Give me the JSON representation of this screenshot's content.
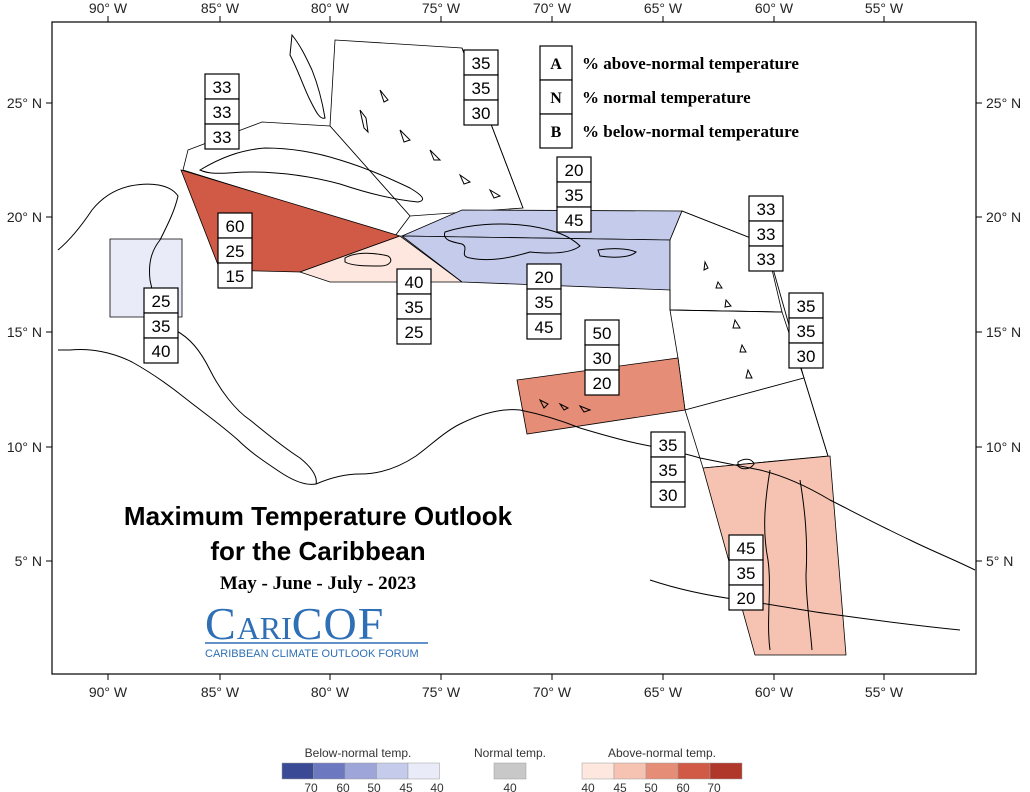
{
  "map": {
    "title": "Maximum Temperature Outlook",
    "title_line2": "for the Caribbean",
    "period": "May - June - July - 2023",
    "logo": {
      "brand_big1": "C",
      "brand_small": "ARI",
      "brand_big2": "COF",
      "subtitle": "CARIBBEAN CLIMATE OUTLOOK FORUM"
    },
    "axes": {
      "lon_labels": [
        "90° W",
        "85° W",
        "80° W",
        "75° W",
        "70° W",
        "65° W",
        "60° W",
        "55° W"
      ],
      "lat_labels": [
        "25° N",
        "20° N",
        "15° N",
        "10° N",
        "5° N"
      ]
    },
    "key": [
      {
        "letter": "A",
        "desc": "% above-normal temperature"
      },
      {
        "letter": "N",
        "desc": "% normal temperature"
      },
      {
        "letter": "B",
        "desc": "% below-normal temperature"
      }
    ],
    "colors": {
      "above_70": "#b0382a",
      "above_60": "#d05a45",
      "above_50": "#e58d76",
      "above_45": "#f6c3b2",
      "above_40": "#fde7df",
      "normal": "#c8c8c8",
      "below_40": "#e9ecf8",
      "below_45": "#c4cbeb",
      "below_50": "#9ea5d8",
      "below_60": "#6c78c0",
      "below_70": "#3a4a94"
    },
    "regions": [
      {
        "id": "bahamas",
        "category": "none",
        "probs": [
          "35",
          "35",
          "30"
        ]
      },
      {
        "id": "northwest",
        "category": "none",
        "probs": [
          "33",
          "33",
          "33"
        ]
      },
      {
        "id": "western",
        "category": "above_60",
        "probs": [
          "60",
          "25",
          "15"
        ]
      },
      {
        "id": "belize",
        "category": "below_40",
        "probs": [
          "25",
          "35",
          "40"
        ]
      },
      {
        "id": "jamaica",
        "category": "above_40",
        "probs": [
          "40",
          "35",
          "25"
        ]
      },
      {
        "id": "hispaniola_north",
        "category": "below_45",
        "probs": [
          "20",
          "35",
          "45"
        ]
      },
      {
        "id": "hispaniola_south",
        "category": "below_45",
        "probs": [
          "20",
          "35",
          "45"
        ]
      },
      {
        "id": "northeast",
        "category": "none",
        "probs": [
          "33",
          "33",
          "33"
        ]
      },
      {
        "id": "east",
        "category": "none",
        "probs": [
          "35",
          "35",
          "30"
        ]
      },
      {
        "id": "abc_islands",
        "category": "above_50",
        "probs": [
          "50",
          "30",
          "20"
        ]
      },
      {
        "id": "trinidad",
        "category": "none",
        "probs": [
          "35",
          "35",
          "30"
        ]
      },
      {
        "id": "guianas",
        "category": "above_45",
        "probs": [
          "45",
          "35",
          "20"
        ]
      }
    ],
    "colorbar": {
      "below_title": "Below-normal temp.",
      "normal_title": "Normal temp.",
      "above_title": "Above-normal temp.",
      "below_ticks": [
        "70",
        "60",
        "50",
        "45",
        "40"
      ],
      "normal_ticks": [
        "40"
      ],
      "above_ticks": [
        "40",
        "45",
        "50",
        "60",
        "70"
      ]
    }
  }
}
